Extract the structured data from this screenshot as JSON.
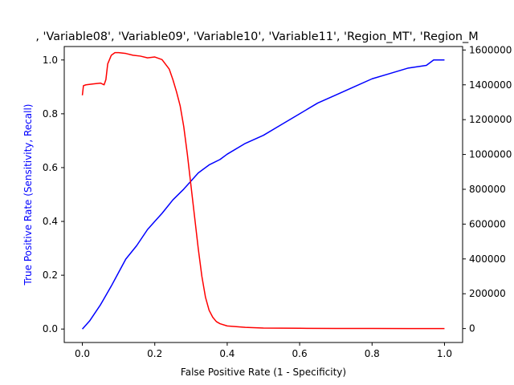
{
  "chart_data": {
    "type": "line",
    "title": ", 'Variable08', 'Variable09', 'Variable10', 'Variable11', 'Region_MT', 'Region_M",
    "xlabel": "False Positive Rate (1 - Specificity)",
    "ylabel": "True Positive Rate (Sensitivity, Recall)",
    "xlim": [
      -0.05,
      1.05
    ],
    "ylim": [
      -0.05,
      1.05
    ],
    "y2lim": [
      -80000,
      1620000
    ],
    "x_ticks": [
      0.0,
      0.2,
      0.4,
      0.6,
      0.8,
      1.0
    ],
    "x_tick_labels": [
      "0.0",
      "0.2",
      "0.4",
      "0.6",
      "0.8",
      "1.0"
    ],
    "y_ticks": [
      0.0,
      0.2,
      0.4,
      0.6,
      0.8,
      1.0
    ],
    "y_tick_labels": [
      "0.0",
      "0.2",
      "0.4",
      "0.6",
      "0.8",
      "1.0"
    ],
    "y2_ticks": [
      0,
      200000,
      400000,
      600000,
      800000,
      1000000,
      1200000,
      1400000,
      1600000
    ],
    "y2_tick_labels": [
      "0",
      "200000",
      "400000",
      "600000",
      "800000",
      "1000000",
      "1200000",
      "1400000",
      "1600000"
    ],
    "grid": false,
    "series": [
      {
        "axis": "left",
        "color": "#0000ff",
        "x": [
          0.0,
          0.02,
          0.05,
          0.08,
          0.1,
          0.12,
          0.15,
          0.18,
          0.2,
          0.22,
          0.25,
          0.28,
          0.3,
          0.32,
          0.35,
          0.38,
          0.4,
          0.45,
          0.5,
          0.55,
          0.6,
          0.65,
          0.7,
          0.75,
          0.8,
          0.85,
          0.9,
          0.95,
          0.97,
          1.0
        ],
        "y": [
          0.0,
          0.03,
          0.09,
          0.16,
          0.21,
          0.26,
          0.31,
          0.37,
          0.4,
          0.43,
          0.48,
          0.52,
          0.55,
          0.58,
          0.61,
          0.63,
          0.65,
          0.69,
          0.72,
          0.76,
          0.8,
          0.84,
          0.87,
          0.9,
          0.93,
          0.95,
          0.97,
          0.98,
          1.0,
          1.0
        ]
      },
      {
        "axis": "right",
        "color": "#ff0000",
        "x": [
          0.0,
          0.003,
          0.01,
          0.03,
          0.05,
          0.06,
          0.065,
          0.07,
          0.08,
          0.09,
          0.1,
          0.12,
          0.14,
          0.16,
          0.18,
          0.2,
          0.22,
          0.24,
          0.25,
          0.26,
          0.27,
          0.28,
          0.29,
          0.3,
          0.31,
          0.32,
          0.33,
          0.34,
          0.35,
          0.36,
          0.37,
          0.38,
          0.4,
          0.45,
          0.5,
          0.6,
          0.7,
          0.8,
          0.9,
          1.0
        ],
        "y": [
          1340000,
          1395000,
          1400000,
          1405000,
          1410000,
          1400000,
          1430000,
          1520000,
          1570000,
          1585000,
          1585000,
          1580000,
          1570000,
          1565000,
          1555000,
          1560000,
          1545000,
          1490000,
          1430000,
          1360000,
          1280000,
          1160000,
          1000000,
          820000,
          640000,
          460000,
          300000,
          180000,
          105000,
          65000,
          40000,
          28000,
          15000,
          7000,
          3000,
          1500,
          800,
          500,
          300,
          200
        ]
      }
    ]
  }
}
